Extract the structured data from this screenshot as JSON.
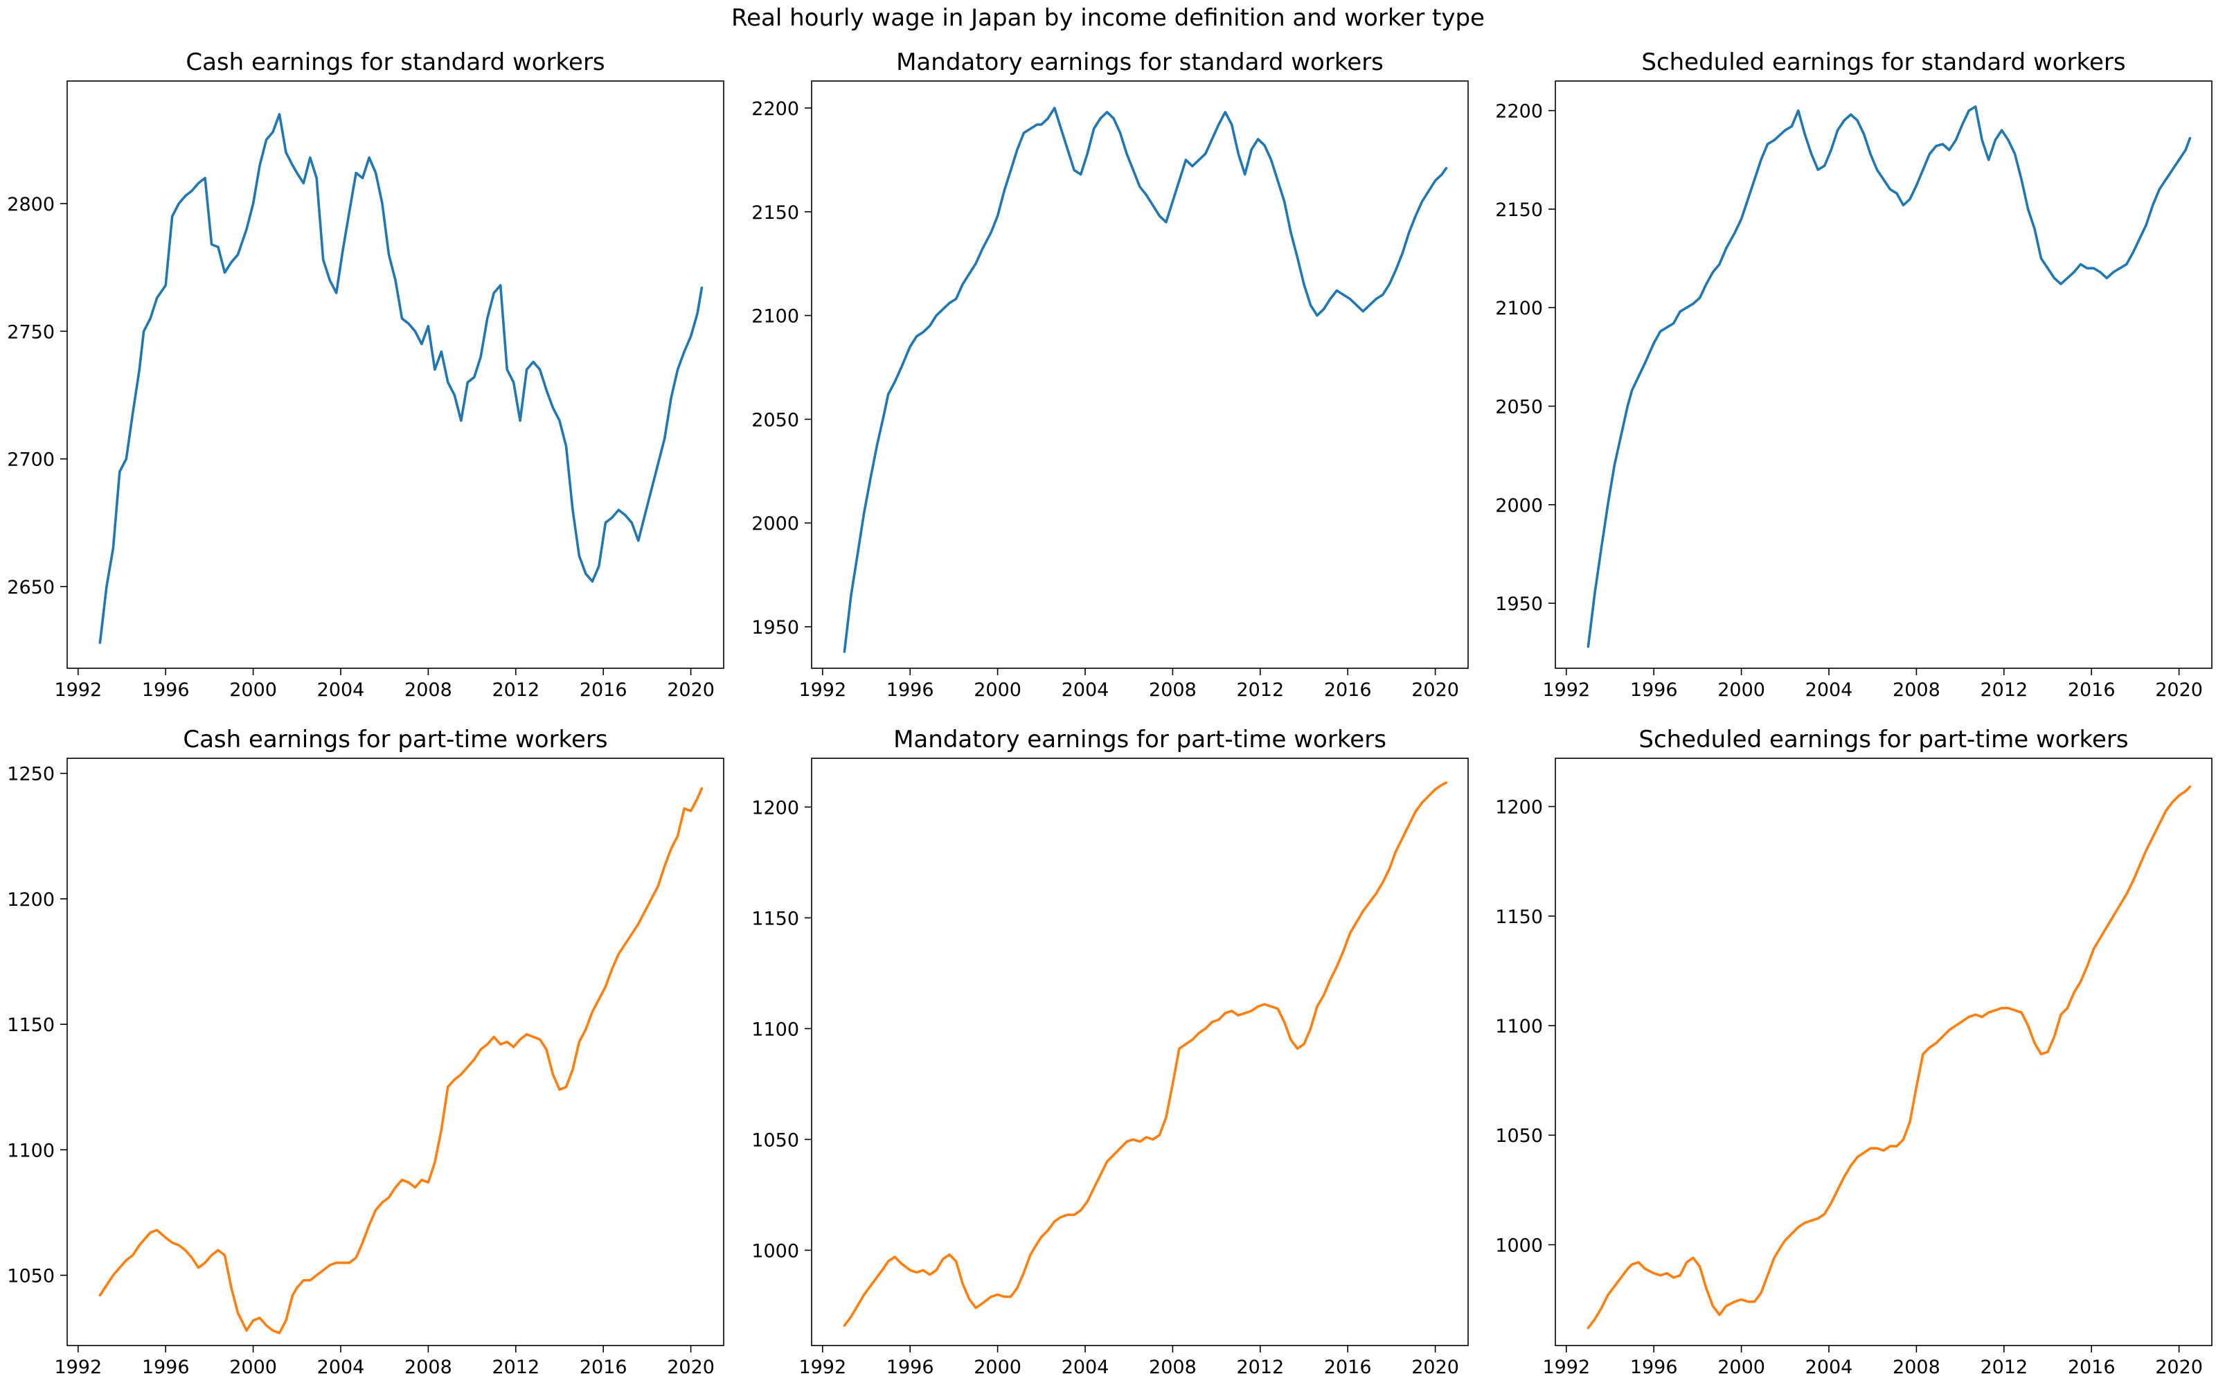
{
  "suptitle": "Real hourly wage in Japan by income definition and worker type",
  "colors": {
    "standard": "#1f77b4",
    "part_time": "#ff7f0e"
  },
  "chart_data": [
    {
      "type": "line",
      "title": "Cash earnings for standard workers",
      "xlim": [
        1991.5,
        2021.5
      ],
      "ylim": [
        2618,
        2848
      ],
      "xticks": [
        1992,
        1996,
        2000,
        2004,
        2008,
        2012,
        2016,
        2020
      ],
      "yticks": [
        2650,
        2700,
        2750,
        2800
      ],
      "color": "#1f77b4",
      "x": [
        1993.0,
        1993.3,
        1993.6,
        1993.9,
        1994.2,
        1994.5,
        1994.8,
        1995.0,
        1995.3,
        1995.6,
        1996.0,
        1996.3,
        1996.6,
        1996.9,
        1997.2,
        1997.5,
        1997.8,
        1998.1,
        1998.4,
        1998.7,
        1999.0,
        1999.3,
        1999.7,
        2000.0,
        2000.3,
        2000.6,
        2000.9,
        2001.2,
        2001.5,
        2001.8,
        2002.0,
        2002.3,
        2002.6,
        2002.9,
        2003.2,
        2003.5,
        2003.8,
        2004.1,
        2004.4,
        2004.7,
        2005.0,
        2005.3,
        2005.6,
        2005.9,
        2006.2,
        2006.5,
        2006.8,
        2007.1,
        2007.4,
        2007.7,
        2008.0,
        2008.3,
        2008.6,
        2008.9,
        2009.2,
        2009.5,
        2009.8,
        2010.1,
        2010.4,
        2010.7,
        2011.0,
        2011.3,
        2011.6,
        2011.9,
        2012.2,
        2012.5,
        2012.8,
        2013.1,
        2013.4,
        2013.7,
        2014.0,
        2014.3,
        2014.6,
        2014.9,
        2015.2,
        2015.5,
        2015.8,
        2016.1,
        2016.4,
        2016.7,
        2017.0,
        2017.3,
        2017.6,
        2017.9,
        2018.2,
        2018.5,
        2018.8,
        2019.1,
        2019.4,
        2019.7,
        2020.0,
        2020.3,
        2020.5
      ],
      "y": [
        2628,
        2650,
        2665,
        2695,
        2700,
        2718,
        2735,
        2750,
        2755,
        2763,
        2768,
        2795,
        2800,
        2803,
        2805,
        2808,
        2810,
        2784,
        2783,
        2773,
        2777,
        2780,
        2790,
        2800,
        2815,
        2825,
        2828,
        2835,
        2820,
        2815,
        2812,
        2808,
        2818,
        2810,
        2778,
        2770,
        2765,
        2782,
        2797,
        2812,
        2810,
        2818,
        2812,
        2800,
        2780,
        2770,
        2755,
        2753,
        2750,
        2745,
        2752,
        2735,
        2742,
        2730,
        2725,
        2715,
        2730,
        2732,
        2740,
        2755,
        2765,
        2768,
        2735,
        2730,
        2715,
        2735,
        2738,
        2735,
        2727,
        2720,
        2715,
        2705,
        2680,
        2662,
        2655,
        2652,
        2658,
        2675,
        2677,
        2680,
        2678,
        2675,
        2668,
        2678,
        2688,
        2698,
        2708,
        2724,
        2735,
        2742,
        2748,
        2757,
        2767
      ]
    },
    {
      "type": "line",
      "title": "Mandatory earnings for standard workers",
      "xlim": [
        1991.5,
        2021.5
      ],
      "ylim": [
        1930,
        2213
      ],
      "xticks": [
        1992,
        1996,
        2000,
        2004,
        2008,
        2012,
        2016,
        2020
      ],
      "yticks": [
        1950,
        2000,
        2050,
        2100,
        2150,
        2200
      ],
      "color": "#1f77b4",
      "x": [
        1993.0,
        1993.3,
        1993.6,
        1993.9,
        1994.2,
        1994.5,
        1994.8,
        1995.0,
        1995.3,
        1995.6,
        1996.0,
        1996.3,
        1996.6,
        1996.9,
        1997.2,
        1997.5,
        1997.8,
        1998.1,
        1998.4,
        1998.7,
        1999.0,
        1999.3,
        1999.7,
        2000.0,
        2000.3,
        2000.6,
        2000.9,
        2001.2,
        2001.5,
        2001.8,
        2002.0,
        2002.3,
        2002.6,
        2002.9,
        2003.2,
        2003.5,
        2003.8,
        2004.1,
        2004.4,
        2004.7,
        2005.0,
        2005.3,
        2005.6,
        2005.9,
        2006.2,
        2006.5,
        2006.8,
        2007.1,
        2007.4,
        2007.7,
        2008.0,
        2008.3,
        2008.6,
        2008.9,
        2009.2,
        2009.5,
        2009.8,
        2010.1,
        2010.4,
        2010.7,
        2011.0,
        2011.3,
        2011.6,
        2011.9,
        2012.2,
        2012.5,
        2012.8,
        2013.1,
        2013.4,
        2013.7,
        2014.0,
        2014.3,
        2014.6,
        2014.9,
        2015.2,
        2015.5,
        2015.8,
        2016.1,
        2016.4,
        2016.7,
        2017.0,
        2017.3,
        2017.6,
        2017.9,
        2018.2,
        2018.5,
        2018.8,
        2019.1,
        2019.4,
        2019.7,
        2020.0,
        2020.3,
        2020.5
      ],
      "y": [
        1938,
        1965,
        1985,
        2005,
        2022,
        2038,
        2052,
        2062,
        2068,
        2075,
        2085,
        2090,
        2092,
        2095,
        2100,
        2103,
        2106,
        2108,
        2115,
        2120,
        2125,
        2132,
        2140,
        2148,
        2160,
        2170,
        2180,
        2188,
        2190,
        2192,
        2192,
        2195,
        2200,
        2190,
        2180,
        2170,
        2168,
        2178,
        2190,
        2195,
        2198,
        2195,
        2188,
        2178,
        2170,
        2162,
        2158,
        2153,
        2148,
        2145,
        2155,
        2165,
        2175,
        2172,
        2175,
        2178,
        2185,
        2192,
        2198,
        2192,
        2178,
        2168,
        2180,
        2185,
        2182,
        2175,
        2165,
        2155,
        2140,
        2128,
        2115,
        2105,
        2100,
        2103,
        2108,
        2112,
        2110,
        2108,
        2105,
        2102,
        2105,
        2108,
        2110,
        2115,
        2122,
        2130,
        2140,
        2148,
        2155,
        2160,
        2165,
        2168,
        2171
      ]
    },
    {
      "type": "line",
      "title": "Scheduled earnings for standard workers",
      "xlim": [
        1991.5,
        2021.5
      ],
      "ylim": [
        1917,
        2215
      ],
      "xticks": [
        1992,
        1996,
        2000,
        2004,
        2008,
        2012,
        2016,
        2020
      ],
      "yticks": [
        1950,
        2000,
        2050,
        2100,
        2150,
        2200
      ],
      "color": "#1f77b4",
      "x": [
        1993.0,
        1993.3,
        1993.6,
        1993.9,
        1994.2,
        1994.5,
        1994.8,
        1995.0,
        1995.3,
        1995.6,
        1996.0,
        1996.3,
        1996.6,
        1996.9,
        1997.2,
        1997.5,
        1997.8,
        1998.1,
        1998.4,
        1998.7,
        1999.0,
        1999.3,
        1999.7,
        2000.0,
        2000.3,
        2000.6,
        2000.9,
        2001.2,
        2001.5,
        2001.8,
        2002.0,
        2002.3,
        2002.6,
        2002.9,
        2003.2,
        2003.5,
        2003.8,
        2004.1,
        2004.4,
        2004.7,
        2005.0,
        2005.3,
        2005.6,
        2005.9,
        2006.2,
        2006.5,
        2006.8,
        2007.1,
        2007.4,
        2007.7,
        2008.0,
        2008.3,
        2008.6,
        2008.9,
        2009.2,
        2009.5,
        2009.8,
        2010.1,
        2010.4,
        2010.7,
        2011.0,
        2011.3,
        2011.6,
        2011.9,
        2012.2,
        2012.5,
        2012.8,
        2013.1,
        2013.4,
        2013.7,
        2014.0,
        2014.3,
        2014.6,
        2014.9,
        2015.2,
        2015.5,
        2015.8,
        2016.1,
        2016.4,
        2016.7,
        2017.0,
        2017.3,
        2017.6,
        2017.9,
        2018.2,
        2018.5,
        2018.8,
        2019.1,
        2019.4,
        2019.7,
        2020.0,
        2020.3,
        2020.5
      ],
      "y": [
        1928,
        1955,
        1978,
        2000,
        2020,
        2035,
        2050,
        2058,
        2065,
        2072,
        2082,
        2088,
        2090,
        2092,
        2098,
        2100,
        2102,
        2105,
        2112,
        2118,
        2122,
        2130,
        2138,
        2145,
        2155,
        2165,
        2175,
        2183,
        2185,
        2188,
        2190,
        2192,
        2200,
        2188,
        2178,
        2170,
        2172,
        2180,
        2190,
        2195,
        2198,
        2195,
        2188,
        2178,
        2170,
        2165,
        2160,
        2158,
        2152,
        2155,
        2162,
        2170,
        2178,
        2182,
        2183,
        2180,
        2185,
        2193,
        2200,
        2202,
        2185,
        2175,
        2185,
        2190,
        2185,
        2178,
        2165,
        2150,
        2140,
        2125,
        2120,
        2115,
        2112,
        2115,
        2118,
        2122,
        2120,
        2120,
        2118,
        2115,
        2118,
        2120,
        2122,
        2128,
        2135,
        2142,
        2152,
        2160,
        2165,
        2170,
        2175,
        2180,
        2186
      ]
    },
    {
      "type": "line",
      "title": "Cash earnings for part-time workers",
      "xlim": [
        1991.5,
        2021.5
      ],
      "ylim": [
        1022,
        1256
      ],
      "xticks": [
        1992,
        1996,
        2000,
        2004,
        2008,
        2012,
        2016,
        2020
      ],
      "yticks": [
        1050,
        1100,
        1150,
        1200,
        1250
      ],
      "color": "#ff7f0e",
      "x": [
        1993.0,
        1993.3,
        1993.6,
        1993.9,
        1994.2,
        1994.5,
        1994.8,
        1995.0,
        1995.3,
        1995.6,
        1996.0,
        1996.3,
        1996.6,
        1996.9,
        1997.2,
        1997.5,
        1997.8,
        1998.1,
        1998.4,
        1998.7,
        1999.0,
        1999.3,
        1999.7,
        2000.0,
        2000.3,
        2000.6,
        2000.9,
        2001.2,
        2001.5,
        2001.8,
        2002.0,
        2002.3,
        2002.6,
        2002.9,
        2003.2,
        2003.5,
        2003.8,
        2004.1,
        2004.4,
        2004.7,
        2005.0,
        2005.3,
        2005.6,
        2005.9,
        2006.2,
        2006.5,
        2006.8,
        2007.1,
        2007.4,
        2007.7,
        2008.0,
        2008.3,
        2008.6,
        2008.9,
        2009.2,
        2009.5,
        2009.8,
        2010.1,
        2010.4,
        2010.7,
        2011.0,
        2011.3,
        2011.6,
        2011.9,
        2012.2,
        2012.5,
        2012.8,
        2013.1,
        2013.4,
        2013.7,
        2014.0,
        2014.3,
        2014.6,
        2014.9,
        2015.2,
        2015.5,
        2015.8,
        2016.1,
        2016.4,
        2016.7,
        2017.0,
        2017.3,
        2017.6,
        2017.9,
        2018.2,
        2018.5,
        2018.8,
        2019.1,
        2019.4,
        2019.7,
        2020.0,
        2020.3,
        2020.5
      ],
      "y": [
        1042,
        1046,
        1050,
        1053,
        1056,
        1058,
        1062,
        1064,
        1067,
        1068,
        1065,
        1063,
        1062,
        1060,
        1057,
        1053,
        1055,
        1058,
        1060,
        1058,
        1045,
        1035,
        1028,
        1032,
        1033,
        1030,
        1028,
        1027,
        1032,
        1042,
        1045,
        1048,
        1048,
        1050,
        1052,
        1054,
        1055,
        1055,
        1055,
        1057,
        1063,
        1070,
        1076,
        1079,
        1081,
        1085,
        1088,
        1087,
        1085,
        1088,
        1087,
        1095,
        1108,
        1125,
        1128,
        1130,
        1133,
        1136,
        1140,
        1142,
        1145,
        1142,
        1143,
        1141,
        1144,
        1146,
        1145,
        1144,
        1140,
        1130,
        1124,
        1125,
        1132,
        1143,
        1148,
        1155,
        1160,
        1165,
        1172,
        1178,
        1182,
        1186,
        1190,
        1195,
        1200,
        1205,
        1213,
        1220,
        1225,
        1236,
        1235,
        1240,
        1244
      ]
    },
    {
      "type": "line",
      "title": "Mandatory earnings for part-time workers",
      "xlim": [
        1991.5,
        2021.5
      ],
      "ylim": [
        957,
        1222
      ],
      "xticks": [
        1992,
        1996,
        2000,
        2004,
        2008,
        2012,
        2016,
        2020
      ],
      "yticks": [
        1000,
        1050,
        1100,
        1150,
        1200
      ],
      "color": "#ff7f0e",
      "x": [
        1993.0,
        1993.3,
        1993.6,
        1993.9,
        1994.2,
        1994.5,
        1994.8,
        1995.0,
        1995.3,
        1995.6,
        1996.0,
        1996.3,
        1996.6,
        1996.9,
        1997.2,
        1997.5,
        1997.8,
        1998.1,
        1998.4,
        1998.7,
        1999.0,
        1999.3,
        1999.7,
        2000.0,
        2000.3,
        2000.6,
        2000.9,
        2001.2,
        2001.5,
        2001.8,
        2002.0,
        2002.3,
        2002.6,
        2002.9,
        2003.2,
        2003.5,
        2003.8,
        2004.1,
        2004.4,
        2004.7,
        2005.0,
        2005.3,
        2005.6,
        2005.9,
        2006.2,
        2006.5,
        2006.8,
        2007.1,
        2007.4,
        2007.7,
        2008.0,
        2008.3,
        2008.6,
        2008.9,
        2009.2,
        2009.5,
        2009.8,
        2010.1,
        2010.4,
        2010.7,
        2011.0,
        2011.3,
        2011.6,
        2011.9,
        2012.2,
        2012.5,
        2012.8,
        2013.1,
        2013.4,
        2013.7,
        2014.0,
        2014.3,
        2014.6,
        2014.9,
        2015.2,
        2015.5,
        2015.8,
        2016.1,
        2016.4,
        2016.7,
        2017.0,
        2017.3,
        2017.6,
        2017.9,
        2018.2,
        2018.5,
        2018.8,
        2019.1,
        2019.4,
        2019.7,
        2020.0,
        2020.3,
        2020.5
      ],
      "y": [
        966,
        970,
        975,
        980,
        984,
        988,
        992,
        995,
        997,
        994,
        991,
        990,
        991,
        989,
        991,
        996,
        998,
        995,
        985,
        978,
        974,
        976,
        979,
        980,
        979,
        979,
        983,
        990,
        998,
        1003,
        1006,
        1009,
        1013,
        1015,
        1016,
        1016,
        1018,
        1022,
        1028,
        1034,
        1040,
        1043,
        1046,
        1049,
        1050,
        1049,
        1051,
        1050,
        1052,
        1060,
        1075,
        1091,
        1093,
        1095,
        1098,
        1100,
        1103,
        1104,
        1107,
        1108,
        1106,
        1107,
        1108,
        1110,
        1111,
        1110,
        1109,
        1103,
        1095,
        1091,
        1093,
        1100,
        1110,
        1115,
        1122,
        1128,
        1135,
        1143,
        1148,
        1153,
        1157,
        1161,
        1166,
        1172,
        1180,
        1186,
        1192,
        1198,
        1202,
        1205,
        1208,
        1210,
        1211
      ]
    },
    {
      "type": "line",
      "title": "Scheduled earnings for part-time workers",
      "xlim": [
        1991.5,
        2021.5
      ],
      "ylim": [
        954,
        1222
      ],
      "xticks": [
        1992,
        1996,
        2000,
        2004,
        2008,
        2012,
        2016,
        2020
      ],
      "yticks": [
        1000,
        1050,
        1100,
        1150,
        1200
      ],
      "color": "#ff7f0e",
      "x": [
        1993.0,
        1993.3,
        1993.6,
        1993.9,
        1994.2,
        1994.5,
        1994.8,
        1995.0,
        1995.3,
        1995.6,
        1996.0,
        1996.3,
        1996.6,
        1996.9,
        1997.2,
        1997.5,
        1997.8,
        1998.1,
        1998.4,
        1998.7,
        1999.0,
        1999.3,
        1999.7,
        2000.0,
        2000.3,
        2000.6,
        2000.9,
        2001.2,
        2001.5,
        2001.8,
        2002.0,
        2002.3,
        2002.6,
        2002.9,
        2003.2,
        2003.5,
        2003.8,
        2004.1,
        2004.4,
        2004.7,
        2005.0,
        2005.3,
        2005.6,
        2005.9,
        2006.2,
        2006.5,
        2006.8,
        2007.1,
        2007.4,
        2007.7,
        2008.0,
        2008.3,
        2008.6,
        2008.9,
        2009.2,
        2009.5,
        2009.8,
        2010.1,
        2010.4,
        2010.7,
        2011.0,
        2011.3,
        2011.6,
        2011.9,
        2012.2,
        2012.5,
        2012.8,
        2013.1,
        2013.4,
        2013.7,
        2014.0,
        2014.3,
        2014.6,
        2014.9,
        2015.2,
        2015.5,
        2015.8,
        2016.1,
        2016.4,
        2016.7,
        2017.0,
        2017.3,
        2017.6,
        2017.9,
        2018.2,
        2018.5,
        2018.8,
        2019.1,
        2019.4,
        2019.7,
        2020.0,
        2020.3,
        2020.5
      ],
      "y": [
        962,
        966,
        971,
        977,
        981,
        985,
        989,
        991,
        992,
        989,
        987,
        986,
        987,
        985,
        986,
        992,
        994,
        990,
        980,
        972,
        968,
        972,
        974,
        975,
        974,
        974,
        978,
        986,
        994,
        999,
        1002,
        1005,
        1008,
        1010,
        1011,
        1012,
        1014,
        1019,
        1025,
        1031,
        1036,
        1040,
        1042,
        1044,
        1044,
        1043,
        1045,
        1045,
        1048,
        1056,
        1072,
        1087,
        1090,
        1092,
        1095,
        1098,
        1100,
        1102,
        1104,
        1105,
        1104,
        1106,
        1107,
        1108,
        1108,
        1107,
        1106,
        1100,
        1092,
        1087,
        1088,
        1095,
        1105,
        1108,
        1115,
        1120,
        1127,
        1135,
        1140,
        1145,
        1150,
        1155,
        1160,
        1166,
        1173,
        1180,
        1186,
        1192,
        1198,
        1202,
        1205,
        1207,
        1209
      ]
    }
  ]
}
